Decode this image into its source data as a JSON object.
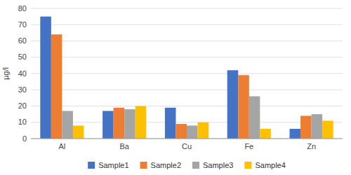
{
  "chart_data": {
    "type": "bar",
    "categories": [
      "Al",
      "Ba",
      "Cu",
      "Fe",
      "Zn"
    ],
    "series": [
      {
        "name": "Sample1",
        "color": "#4472C4",
        "values": [
          75,
          17,
          19,
          42,
          6
        ]
      },
      {
        "name": "Sample2",
        "color": "#ED7D31",
        "values": [
          64,
          19,
          9,
          39,
          14
        ]
      },
      {
        "name": "Sample3",
        "color": "#A5A5A5",
        "values": [
          17,
          18,
          8,
          26,
          15
        ]
      },
      {
        "name": "Sample4",
        "color": "#FFC000",
        "values": [
          8,
          20,
          10,
          6,
          11
        ]
      }
    ],
    "y_label": "µg/l",
    "ylim": [
      0,
      80
    ],
    "yticks": [
      0,
      10,
      20,
      30,
      40,
      50,
      60,
      70,
      80
    ],
    "grid": true,
    "legend": "bottom"
  }
}
